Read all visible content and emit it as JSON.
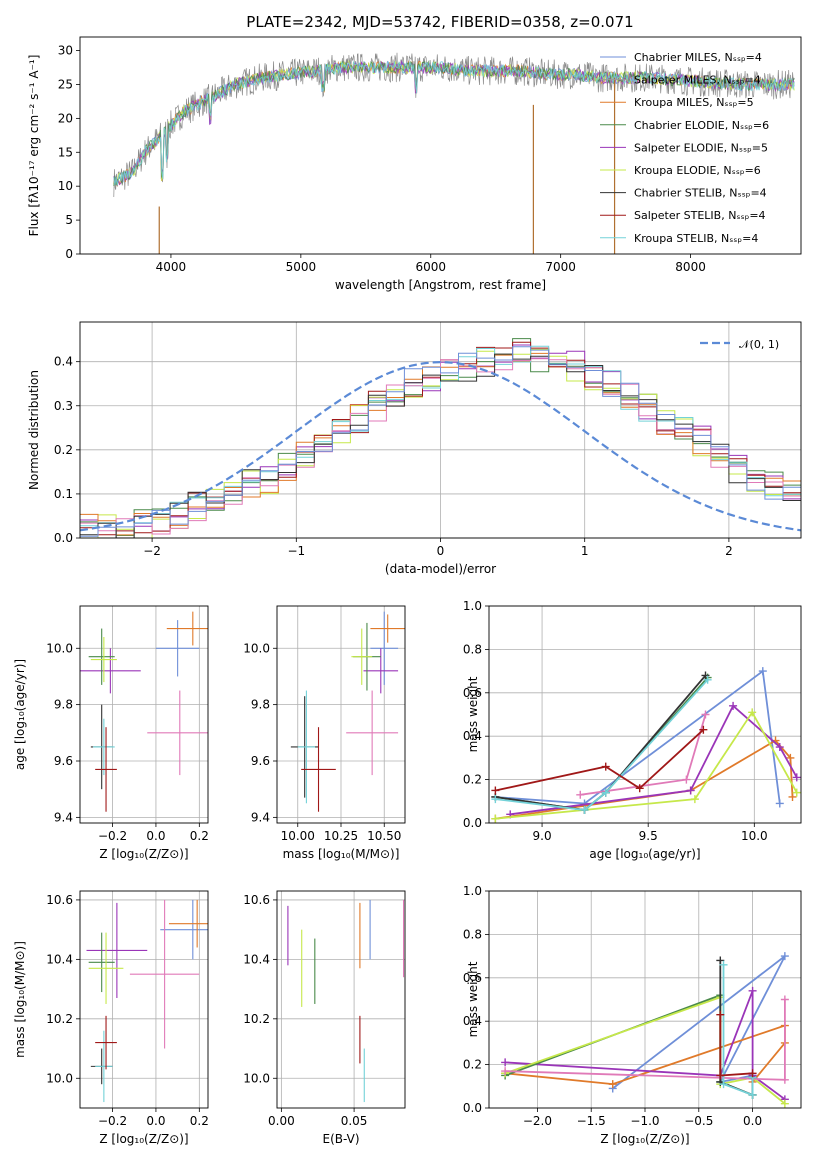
{
  "palette": {
    "Chabrier MILES": "#6f8fd8",
    "Salpeter MILES": "#9a9a9a",
    "Kroupa MILES": "#e07a2a",
    "Chabrier ELODIE": "#4a8a4a",
    "Salpeter ELODIE": "#9a35b8",
    "Kroupa ELODIE": "#c6e84a",
    "Chabrier STELIB": "#333333",
    "Salpeter STELIB": "#a01818",
    "Kroupa STELIB": "#73d2d8",
    "Pink": "#e07ab8",
    "Normal": "#5b8ad6"
  },
  "chart_data": [
    {
      "type": "line",
      "title": "PLATE=2342, MJD=53742, FIBERID=0358, z=0.071",
      "xlabel": "wavelength [Angstrom, rest frame]",
      "ylabel": "Flux [fλ10⁻¹⁷ erg cm⁻² s⁻¹ A⁻¹]",
      "xlim": [
        3300,
        8850
      ],
      "ylim": [
        0,
        32
      ],
      "xticks": [
        4000,
        5000,
        6000,
        7000,
        8000
      ],
      "yticks": [
        0,
        5,
        10,
        15,
        20,
        25,
        30
      ],
      "legend_position": "right",
      "series": [
        {
          "name": "Chabrier MILES, Nₛₛₚ=4"
        },
        {
          "name": "Salpeter MILES, Nₛₛₚ=4"
        },
        {
          "name": "Kroupa MILES, Nₛₛₚ=5"
        },
        {
          "name": "Chabrier ELODIE, Nₛₛₚ=6"
        },
        {
          "name": "Salpeter ELODIE, Nₛₛₚ=5"
        },
        {
          "name": "Kroupa ELODIE, Nₛₛₚ=6"
        },
        {
          "name": "Chabrier STELIB, Nₛₛₚ=4"
        },
        {
          "name": "Salpeter STELIB, Nₛₛₚ=4"
        },
        {
          "name": "Kroupa STELIB, Nₛₛₚ=4"
        }
      ],
      "continuum": {
        "x": [
          3550,
          3700,
          3800,
          3900,
          4000,
          4100,
          4200,
          4300,
          4400,
          4500,
          4700,
          4900,
          5100,
          5300,
          5500,
          5700,
          5900,
          6100,
          6300,
          6500,
          6700,
          6900,
          7100,
          7300,
          7500,
          7700,
          8000,
          8400,
          8800
        ],
        "y": [
          10.5,
          12,
          15,
          17,
          19,
          21,
          22,
          23,
          24,
          25,
          26,
          26.5,
          27,
          27.5,
          27.5,
          27.5,
          27.5,
          27.5,
          27,
          27,
          27,
          26.5,
          26.5,
          26,
          26,
          26,
          25.5,
          25,
          25
        ]
      },
      "spikes": [
        {
          "x": 3910,
          "ymin": 0,
          "ymax": 7
        },
        {
          "x": 6790,
          "ymin": 0,
          "ymax": 22
        },
        {
          "x": 7415,
          "ymin": 0,
          "ymax": 26
        }
      ]
    },
    {
      "type": "histogram",
      "xlabel": "(data-model)/error",
      "ylabel": "Normed distribution",
      "xlim": [
        -2.5,
        2.5
      ],
      "ylim": [
        0,
        0.49
      ],
      "xticks": [
        -2,
        -1,
        0,
        1,
        2
      ],
      "yticks": [
        0.0,
        0.1,
        0.2,
        0.3,
        0.4
      ],
      "grid": true,
      "legend_position": "top-right",
      "normal_label": "𝒩(0, 1)",
      "bin_width": 0.125,
      "bin_start": -2.5,
      "values": [
        0.02,
        0.03,
        0.02,
        0.03,
        0.04,
        0.05,
        0.07,
        0.08,
        0.1,
        0.12,
        0.13,
        0.16,
        0.19,
        0.22,
        0.25,
        0.27,
        0.3,
        0.33,
        0.35,
        0.36,
        0.38,
        0.39,
        0.4,
        0.41,
        0.42,
        0.41,
        0.4,
        0.39,
        0.37,
        0.35,
        0.32,
        0.3,
        0.27,
        0.25,
        0.22,
        0.19,
        0.16,
        0.14,
        0.12,
        0.1
      ]
    },
    {
      "type": "scatter",
      "subtype": "errorbar",
      "xlabel": "Z [log₁₀(Z/Z⊙)]",
      "ylabel": "age  [log₁₀(age/yr)]",
      "xlim": [
        -0.35,
        0.24
      ],
      "ylim": [
        9.38,
        10.15
      ],
      "xticks": [
        -0.2,
        0.0,
        0.2
      ],
      "yticks": [
        9.4,
        9.6,
        9.8,
        10.0
      ],
      "grid": true,
      "points": [
        {
          "series": "Chabrier MILES",
          "x": 0.1,
          "y": 10.0,
          "xerr": 0.1,
          "yerr": 0.1
        },
        {
          "series": "Kroupa MILES",
          "x": 0.17,
          "y": 10.07,
          "xerr": 0.12,
          "yerr": 0.06
        },
        {
          "series": "Salpeter ELODIE",
          "x": -0.21,
          "y": 9.92,
          "xerr": 0.14,
          "yerr": 0.08
        },
        {
          "series": "Chabrier ELODIE",
          "x": -0.25,
          "y": 9.97,
          "xerr": 0.06,
          "yerr": 0.1
        },
        {
          "series": "Kroupa ELODIE",
          "x": -0.24,
          "y": 9.96,
          "xerr": 0.06,
          "yerr": 0.08
        },
        {
          "series": "Pink",
          "x": 0.11,
          "y": 9.7,
          "xerr": 0.15,
          "yerr": 0.15
        },
        {
          "series": "Chabrier STELIB",
          "x": -0.25,
          "y": 9.65,
          "xerr": 0.05,
          "yerr": 0.15
        },
        {
          "series": "Kroupa STELIB",
          "x": -0.24,
          "y": 9.65,
          "xerr": 0.05,
          "yerr": 0.1
        },
        {
          "series": "Salpeter STELIB",
          "x": -0.23,
          "y": 9.57,
          "xerr": 0.05,
          "yerr": 0.15
        }
      ]
    },
    {
      "type": "scatter",
      "subtype": "errorbar",
      "xlabel": "mass [log₁₀(M/M⊙)]",
      "ylabel": "",
      "xlim": [
        9.88,
        10.62
      ],
      "ylim": [
        9.38,
        10.15
      ],
      "xticks": [
        10.0,
        10.25,
        10.5
      ],
      "yticks": [
        9.4,
        9.6,
        9.8,
        10.0
      ],
      "grid": true,
      "points": [
        {
          "series": "Chabrier MILES",
          "x": 10.5,
          "y": 10.0,
          "xerr": 0.08,
          "yerr": 0.13
        },
        {
          "series": "Kroupa MILES",
          "x": 10.52,
          "y": 10.07,
          "xerr": 0.1,
          "yerr": 0.05
        },
        {
          "series": "Salpeter ELODIE",
          "x": 10.48,
          "y": 9.92,
          "xerr": 0.1,
          "yerr": 0.08
        },
        {
          "series": "Chabrier ELODIE",
          "x": 10.4,
          "y": 9.97,
          "xerr": 0.08,
          "yerr": 0.12
        },
        {
          "series": "Kroupa ELODIE",
          "x": 10.37,
          "y": 9.97,
          "xerr": 0.06,
          "yerr": 0.1
        },
        {
          "series": "Pink",
          "x": 10.43,
          "y": 9.7,
          "xerr": 0.15,
          "yerr": 0.15
        },
        {
          "series": "Chabrier STELIB",
          "x": 10.04,
          "y": 9.65,
          "xerr": 0.08,
          "yerr": 0.18
        },
        {
          "series": "Kroupa STELIB",
          "x": 10.05,
          "y": 9.65,
          "xerr": 0.05,
          "yerr": 0.2
        },
        {
          "series": "Salpeter STELIB",
          "x": 10.12,
          "y": 9.57,
          "xerr": 0.1,
          "yerr": 0.15
        }
      ]
    },
    {
      "type": "line",
      "xlabel": "age  [log₁₀(age/yr)]",
      "ylabel": "mass weight",
      "xlim": [
        8.75,
        10.22
      ],
      "ylim": [
        0.0,
        1.0
      ],
      "xticks": [
        9.0,
        9.5,
        10.0
      ],
      "yticks": [
        0.0,
        0.2,
        0.4,
        0.6,
        0.8,
        1.0
      ],
      "grid": true,
      "series": [
        {
          "name": "Chabrier MILES",
          "x": [
            8.78,
            9.2,
            10.04,
            10.12
          ],
          "y": [
            0.12,
            0.09,
            0.7,
            0.09
          ]
        },
        {
          "name": "Kroupa MILES",
          "x": [
            8.78,
            9.7,
            10.1,
            10.17,
            10.18
          ],
          "y": [
            0.02,
            0.15,
            0.38,
            0.3,
            0.12
          ]
        },
        {
          "name": "Salpeter ELODIE",
          "x": [
            8.85,
            9.7,
            9.9,
            10.12,
            10.2
          ],
          "y": [
            0.04,
            0.15,
            0.54,
            0.35,
            0.21
          ]
        },
        {
          "name": "Chabrier ELODIE",
          "x": [
            8.78,
            9.2,
            9.3,
            9.78
          ],
          "y": [
            0.12,
            0.06,
            0.14,
            0.67
          ]
        },
        {
          "name": "Kroupa ELODIE",
          "x": [
            8.78,
            9.72,
            9.99,
            10.2
          ],
          "y": [
            0.02,
            0.11,
            0.51,
            0.14
          ]
        },
        {
          "name": "Pink",
          "x": [
            9.18,
            9.68,
            9.77
          ],
          "y": [
            0.13,
            0.2,
            0.5
          ]
        },
        {
          "name": "Chabrier STELIB",
          "x": [
            8.78,
            9.2,
            9.3,
            9.77
          ],
          "y": [
            0.12,
            0.06,
            0.14,
            0.68
          ]
        },
        {
          "name": "Kroupa STELIB",
          "x": [
            8.78,
            9.2,
            9.3,
            9.78
          ],
          "y": [
            0.11,
            0.06,
            0.14,
            0.66
          ]
        },
        {
          "name": "Salpeter STELIB",
          "x": [
            8.78,
            9.3,
            9.46,
            9.76
          ],
          "y": [
            0.15,
            0.26,
            0.16,
            0.43
          ]
        }
      ]
    },
    {
      "type": "scatter",
      "subtype": "errorbar",
      "xlabel": "Z [log₁₀(Z/Z⊙)]",
      "ylabel": "mass [log₁₀(M/M⊙)]",
      "xlim": [
        -0.35,
        0.24
      ],
      "ylim": [
        9.9,
        10.63
      ],
      "xticks": [
        -0.2,
        0.0,
        0.2
      ],
      "yticks": [
        10.0,
        10.2,
        10.4,
        10.6
      ],
      "grid": true,
      "points": [
        {
          "series": "Chabrier MILES",
          "x": 0.17,
          "y": 10.5,
          "xerr": 0.15,
          "yerr": 0.1
        },
        {
          "series": "Kroupa MILES",
          "x": 0.19,
          "y": 10.52,
          "xerr": 0.13,
          "yerr": 0.08
        },
        {
          "series": "Salpeter ELODIE",
          "x": -0.18,
          "y": 10.43,
          "xerr": 0.14,
          "yerr": 0.16
        },
        {
          "series": "Chabrier ELODIE",
          "x": -0.25,
          "y": 10.39,
          "xerr": 0.06,
          "yerr": 0.1
        },
        {
          "series": "Kroupa ELODIE",
          "x": -0.23,
          "y": 10.37,
          "xerr": 0.08,
          "yerr": 0.12
        },
        {
          "series": "Pink",
          "x": 0.04,
          "y": 10.35,
          "xerr": 0.16,
          "yerr": 0.25
        },
        {
          "series": "Chabrier STELIB",
          "x": -0.25,
          "y": 10.04,
          "xerr": 0.05,
          "yerr": 0.06
        },
        {
          "series": "Kroupa STELIB",
          "x": -0.24,
          "y": 10.04,
          "xerr": 0.04,
          "yerr": 0.12
        },
        {
          "series": "Salpeter STELIB",
          "x": -0.23,
          "y": 10.12,
          "xerr": 0.05,
          "yerr": 0.09
        }
      ]
    },
    {
      "type": "scatter",
      "subtype": "errorbar",
      "xlabel": "E(B-V)",
      "ylabel": "",
      "xlim": [
        -0.003,
        0.085
      ],
      "ylim": [
        9.9,
        10.63
      ],
      "xticks": [
        0.0,
        0.05
      ],
      "yticks": [
        10.0,
        10.2,
        10.4,
        10.6
      ],
      "grid": true,
      "points": [
        {
          "series": "Salpeter ELODIE",
          "x": 0.0045,
          "y": 10.48,
          "xerr": 0,
          "yerr": 0.1
        },
        {
          "series": "Kroupa ELODIE",
          "x": 0.014,
          "y": 10.37,
          "xerr": 0,
          "yerr": 0.13
        },
        {
          "series": "Chabrier ELODIE",
          "x": 0.023,
          "y": 10.36,
          "xerr": 0,
          "yerr": 0.11
        },
        {
          "series": "Kroupa MILES",
          "x": 0.054,
          "y": 10.48,
          "xerr": 0,
          "yerr": 0.11
        },
        {
          "series": "Salpeter STELIB",
          "x": 0.054,
          "y": 10.13,
          "xerr": 0,
          "yerr": 0.08
        },
        {
          "series": "Kroupa STELIB",
          "x": 0.057,
          "y": 10.01,
          "xerr": 0,
          "yerr": 0.09
        },
        {
          "series": "Chabrier MILES",
          "x": 0.061,
          "y": 10.5,
          "xerr": 0,
          "yerr": 0.1
        },
        {
          "series": "Pink",
          "x": 0.084,
          "y": 10.47,
          "xerr": 0,
          "yerr": 0.13
        }
      ]
    },
    {
      "type": "line",
      "xlabel": "Z [log₁₀(Z/Z⊙)]",
      "ylabel": "mass weight",
      "xlim": [
        -2.45,
        0.45
      ],
      "ylim": [
        0.0,
        1.0
      ],
      "xticks": [
        -2.0,
        -1.5,
        -1.0,
        -0.5,
        0.0
      ],
      "yticks": [
        0.0,
        0.2,
        0.4,
        0.6,
        0.8,
        1.0
      ],
      "grid": true,
      "series": [
        {
          "name": "Chabrier MILES",
          "x": [
            -1.3,
            0.3,
            -0.3,
            0.0
          ],
          "y": [
            0.09,
            0.7,
            0.12,
            0.15
          ]
        },
        {
          "name": "Kroupa MILES",
          "x": [
            -2.3,
            -1.3,
            0.3,
            0.3,
            0.0
          ],
          "y": [
            0.16,
            0.11,
            0.38,
            0.3,
            0.12
          ]
        },
        {
          "name": "Salpeter ELODIE",
          "x": [
            -2.3,
            -0.3,
            0.0,
            0.0,
            0.3
          ],
          "y": [
            0.21,
            0.15,
            0.54,
            0.15,
            0.04
          ]
        },
        {
          "name": "Chabrier ELODIE",
          "x": [
            -2.3,
            -0.3,
            -0.3,
            0.0
          ],
          "y": [
            0.15,
            0.52,
            0.12,
            0.06
          ]
        },
        {
          "name": "Kroupa ELODIE",
          "x": [
            -2.3,
            -0.3,
            -0.3,
            0.0,
            0.3
          ],
          "y": [
            0.16,
            0.51,
            0.11,
            0.14,
            0.02
          ]
        },
        {
          "name": "Pink",
          "x": [
            -2.3,
            0.3,
            0.3
          ],
          "y": [
            0.17,
            0.13,
            0.5
          ]
        },
        {
          "name": "Chabrier STELIB",
          "x": [
            -0.3,
            -0.3,
            0.0,
            0.0
          ],
          "y": [
            0.68,
            0.12,
            0.06,
            0.14
          ]
        },
        {
          "name": "Kroupa STELIB",
          "x": [
            -0.27,
            -0.27,
            0.0,
            0.0
          ],
          "y": [
            0.66,
            0.11,
            0.06,
            0.14
          ]
        },
        {
          "name": "Salpeter STELIB",
          "x": [
            -0.3,
            -0.3,
            0.0
          ],
          "y": [
            0.43,
            0.15,
            0.16
          ]
        }
      ]
    }
  ]
}
